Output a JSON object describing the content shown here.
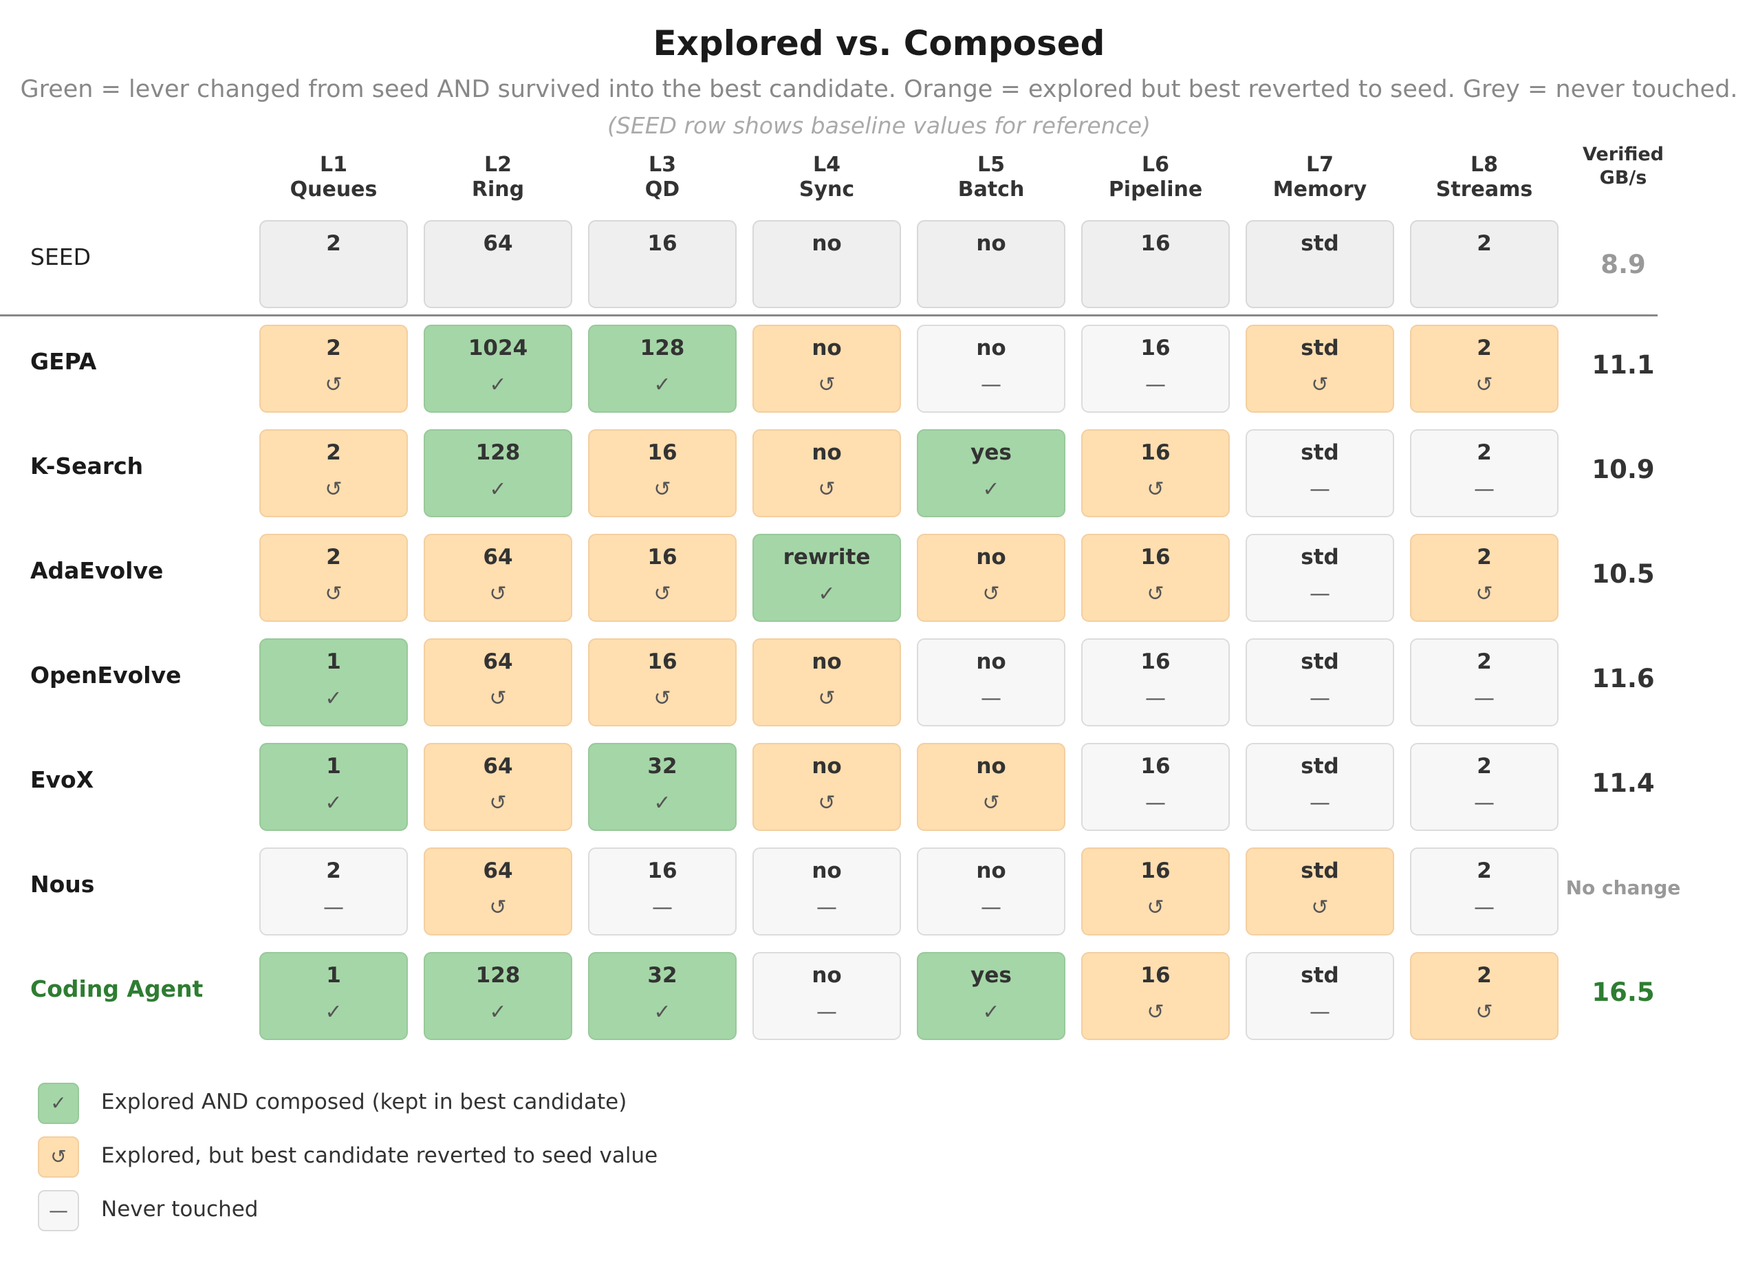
{
  "title": "Explored vs. Composed",
  "subtitle": "Green = lever changed from seed AND survived into the best candidate. Orange = explored but best reverted to seed. Grey = never touched.",
  "note": "(SEED row shows baseline values for reference)",
  "colors": {
    "composed": "#a5d6a7",
    "reverted": "#ffdeb0",
    "untouched": "#f7f7f7",
    "seed": "#efefef",
    "highlight": "#2e7d32"
  },
  "columns": [
    {
      "id": "L1",
      "name": "Queues"
    },
    {
      "id": "L2",
      "name": "Ring"
    },
    {
      "id": "L3",
      "name": "QD"
    },
    {
      "id": "L4",
      "name": "Sync"
    },
    {
      "id": "L5",
      "name": "Batch"
    },
    {
      "id": "L6",
      "name": "Pipeline"
    },
    {
      "id": "L7",
      "name": "Memory"
    },
    {
      "id": "L8",
      "name": "Streams"
    }
  ],
  "verified_header": [
    "Verified",
    "GB/s"
  ],
  "seed": {
    "label": "SEED",
    "values": [
      "2",
      "64",
      "16",
      "no",
      "no",
      "16",
      "std",
      "2"
    ],
    "score": "8.9"
  },
  "marks": {
    "composed": "✓",
    "reverted": "↺",
    "untouched": "—"
  },
  "rows": [
    {
      "label": "GEPA",
      "score": "11.1",
      "cells": [
        [
          "2",
          "reverted"
        ],
        [
          "1024",
          "composed"
        ],
        [
          "128",
          "composed"
        ],
        [
          "no",
          "reverted"
        ],
        [
          "no",
          "untouched"
        ],
        [
          "16",
          "untouched"
        ],
        [
          "std",
          "reverted"
        ],
        [
          "2",
          "reverted"
        ]
      ]
    },
    {
      "label": "K-Search",
      "score": "10.9",
      "cells": [
        [
          "2",
          "reverted"
        ],
        [
          "128",
          "composed"
        ],
        [
          "16",
          "reverted"
        ],
        [
          "no",
          "reverted"
        ],
        [
          "yes",
          "composed"
        ],
        [
          "16",
          "reverted"
        ],
        [
          "std",
          "untouched"
        ],
        [
          "2",
          "untouched"
        ]
      ]
    },
    {
      "label": "AdaEvolve",
      "score": "10.5",
      "cells": [
        [
          "2",
          "reverted"
        ],
        [
          "64",
          "reverted"
        ],
        [
          "16",
          "reverted"
        ],
        [
          "rewrite",
          "composed"
        ],
        [
          "no",
          "reverted"
        ],
        [
          "16",
          "reverted"
        ],
        [
          "std",
          "untouched"
        ],
        [
          "2",
          "reverted"
        ]
      ]
    },
    {
      "label": "OpenEvolve",
      "score": "11.6",
      "cells": [
        [
          "1",
          "composed"
        ],
        [
          "64",
          "reverted"
        ],
        [
          "16",
          "reverted"
        ],
        [
          "no",
          "reverted"
        ],
        [
          "no",
          "untouched"
        ],
        [
          "16",
          "untouched"
        ],
        [
          "std",
          "untouched"
        ],
        [
          "2",
          "untouched"
        ]
      ]
    },
    {
      "label": "EvoX",
      "score": "11.4",
      "cells": [
        [
          "1",
          "composed"
        ],
        [
          "64",
          "reverted"
        ],
        [
          "32",
          "composed"
        ],
        [
          "no",
          "reverted"
        ],
        [
          "no",
          "reverted"
        ],
        [
          "16",
          "untouched"
        ],
        [
          "std",
          "untouched"
        ],
        [
          "2",
          "untouched"
        ]
      ]
    },
    {
      "label": "Nous",
      "score": "No change",
      "cells": [
        [
          "2",
          "untouched"
        ],
        [
          "64",
          "reverted"
        ],
        [
          "16",
          "untouched"
        ],
        [
          "no",
          "untouched"
        ],
        [
          "no",
          "untouched"
        ],
        [
          "16",
          "reverted"
        ],
        [
          "std",
          "reverted"
        ],
        [
          "2",
          "untouched"
        ]
      ]
    },
    {
      "label": "Coding Agent",
      "score": "16.5",
      "highlight": true,
      "cells": [
        [
          "1",
          "composed"
        ],
        [
          "128",
          "composed"
        ],
        [
          "32",
          "composed"
        ],
        [
          "no",
          "untouched"
        ],
        [
          "yes",
          "composed"
        ],
        [
          "16",
          "reverted"
        ],
        [
          "std",
          "untouched"
        ],
        [
          "2",
          "reverted"
        ]
      ]
    }
  ],
  "legend": [
    {
      "status": "composed",
      "text": "Explored AND composed (kept in best candidate)"
    },
    {
      "status": "reverted",
      "text": "Explored, but best candidate reverted to seed value"
    },
    {
      "status": "untouched",
      "text": "Never touched"
    }
  ]
}
